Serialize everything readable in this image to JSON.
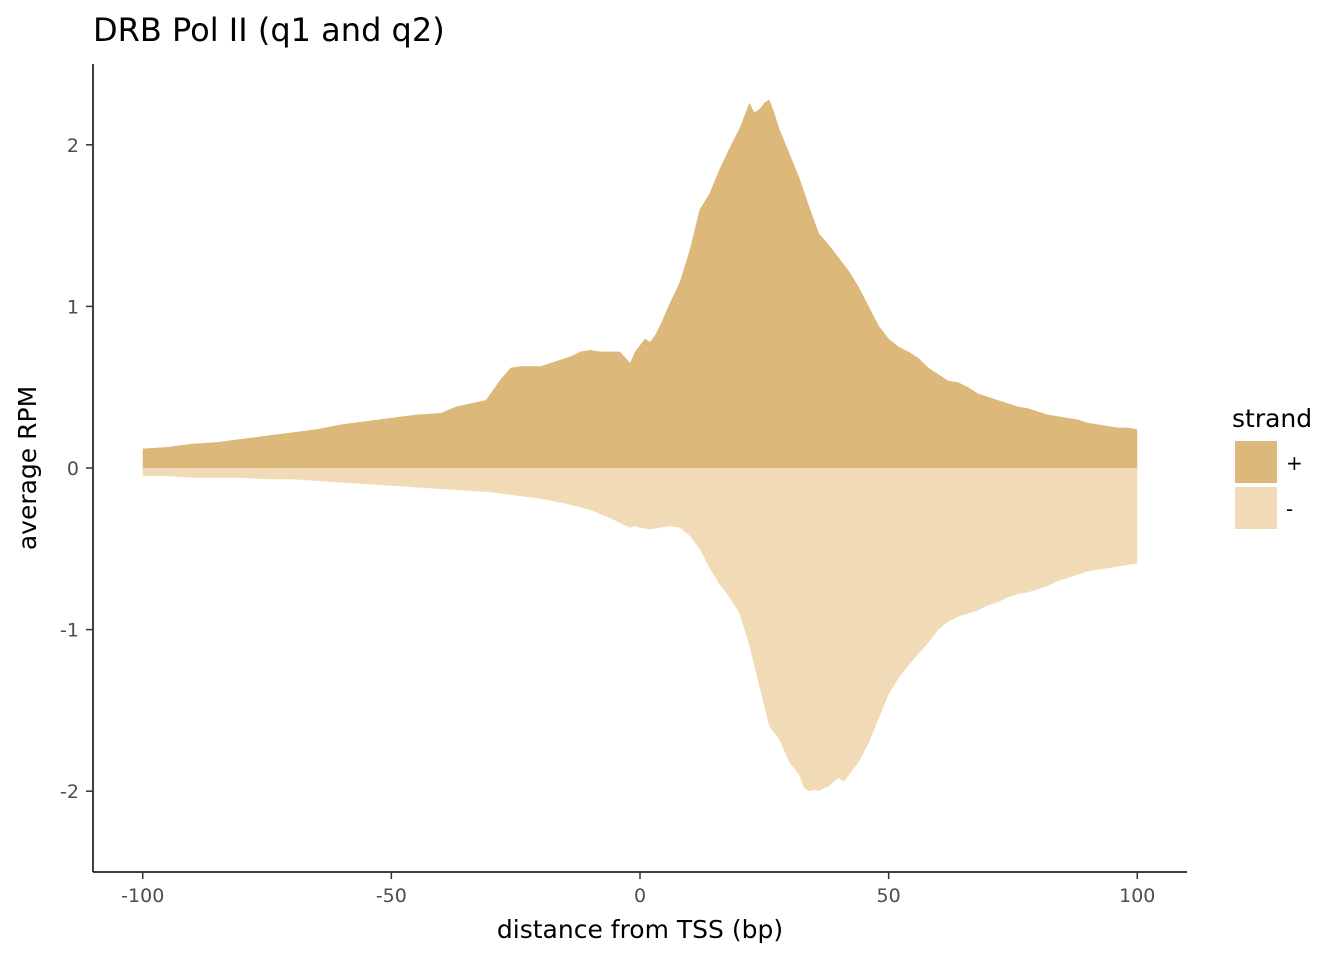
{
  "chart_data": {
    "type": "area",
    "title": "DRB Pol II (q1 and q2)",
    "xlabel": "distance from TSS (bp)",
    "ylabel": "average RPM",
    "xlim": [
      -110,
      110
    ],
    "ylim": [
      -2.5,
      2.5
    ],
    "xticks": [
      -100,
      -50,
      0,
      50,
      100
    ],
    "xtick_labels": [
      "-100",
      "-50",
      "0",
      "50",
      "100"
    ],
    "yticks": [
      -2,
      -1,
      0,
      1,
      2
    ],
    "ytick_labels": [
      "-2",
      "-1",
      "0",
      "1",
      "2"
    ],
    "grid": false,
    "legend": {
      "title": "strand",
      "placement": "right",
      "entries": [
        {
          "label": "+",
          "color": "#DCB97A"
        },
        {
          "label": "-",
          "color": "#F0DBB6"
        }
      ]
    },
    "series": [
      {
        "name": "+",
        "color": "#DCB97A",
        "x": [
          -100,
          -95,
          -90,
          -85,
          -80,
          -75,
          -70,
          -65,
          -60,
          -55,
          -50,
          -45,
          -40,
          -37,
          -34,
          -31,
          -28,
          -26,
          -24,
          -22,
          -20,
          -18,
          -16,
          -14,
          -12,
          -10,
          -8,
          -6,
          -4,
          -2,
          -1,
          0,
          1,
          2,
          3,
          4,
          6,
          8,
          10,
          12,
          14,
          16,
          18,
          20,
          21,
          22,
          23,
          24,
          25,
          26,
          27,
          28,
          30,
          32,
          34,
          36,
          38,
          40,
          42,
          44,
          46,
          48,
          50,
          52,
          54,
          56,
          58,
          60,
          62,
          64,
          66,
          68,
          70,
          72,
          74,
          76,
          78,
          80,
          82,
          84,
          86,
          88,
          90,
          92,
          94,
          96,
          98,
          100
        ],
        "values": [
          0.12,
          0.13,
          0.15,
          0.16,
          0.18,
          0.2,
          0.22,
          0.24,
          0.27,
          0.29,
          0.31,
          0.33,
          0.34,
          0.38,
          0.4,
          0.42,
          0.55,
          0.62,
          0.63,
          0.63,
          0.63,
          0.65,
          0.67,
          0.69,
          0.72,
          0.73,
          0.72,
          0.72,
          0.72,
          0.65,
          0.72,
          0.76,
          0.8,
          0.78,
          0.82,
          0.88,
          1.02,
          1.15,
          1.35,
          1.6,
          1.7,
          1.85,
          1.98,
          2.1,
          2.18,
          2.26,
          2.2,
          2.22,
          2.26,
          2.28,
          2.2,
          2.1,
          1.95,
          1.8,
          1.62,
          1.45,
          1.38,
          1.3,
          1.22,
          1.12,
          1.0,
          0.88,
          0.8,
          0.75,
          0.72,
          0.68,
          0.62,
          0.58,
          0.54,
          0.53,
          0.5,
          0.46,
          0.44,
          0.42,
          0.4,
          0.38,
          0.37,
          0.35,
          0.33,
          0.32,
          0.31,
          0.3,
          0.28,
          0.27,
          0.26,
          0.25,
          0.25,
          0.24
        ]
      },
      {
        "name": "-",
        "color": "#F0DBB6",
        "x": [
          -100,
          -95,
          -90,
          -85,
          -80,
          -75,
          -70,
          -65,
          -60,
          -55,
          -50,
          -45,
          -40,
          -35,
          -30,
          -25,
          -20,
          -15,
          -10,
          -6,
          -4,
          -2,
          -1,
          0,
          2,
          4,
          6,
          8,
          10,
          12,
          14,
          16,
          18,
          20,
          22,
          24,
          26,
          28,
          30,
          32,
          33,
          34,
          35,
          36,
          37,
          38,
          39,
          40,
          41,
          42,
          44,
          46,
          48,
          50,
          52,
          54,
          56,
          58,
          60,
          62,
          64,
          66,
          68,
          70,
          72,
          74,
          76,
          78,
          80,
          82,
          84,
          86,
          88,
          90,
          92,
          94,
          96,
          98,
          100
        ],
        "values": [
          -0.05,
          -0.05,
          -0.06,
          -0.06,
          -0.06,
          -0.07,
          -0.07,
          -0.08,
          -0.09,
          -0.1,
          -0.11,
          -0.12,
          -0.13,
          -0.14,
          -0.15,
          -0.17,
          -0.19,
          -0.22,
          -0.26,
          -0.31,
          -0.34,
          -0.37,
          -0.36,
          -0.37,
          -0.38,
          -0.37,
          -0.36,
          -0.37,
          -0.42,
          -0.5,
          -0.62,
          -0.72,
          -0.8,
          -0.9,
          -1.1,
          -1.35,
          -1.6,
          -1.68,
          -1.82,
          -1.9,
          -1.98,
          -2.0,
          -1.99,
          -2.0,
          -1.98,
          -1.97,
          -1.94,
          -1.92,
          -1.94,
          -1.9,
          -1.82,
          -1.7,
          -1.55,
          -1.4,
          -1.3,
          -1.22,
          -1.15,
          -1.08,
          -1.0,
          -0.95,
          -0.92,
          -0.9,
          -0.88,
          -0.85,
          -0.83,
          -0.8,
          -0.78,
          -0.77,
          -0.75,
          -0.73,
          -0.7,
          -0.68,
          -0.66,
          -0.64,
          -0.63,
          -0.62,
          -0.61,
          -0.6,
          -0.59
        ]
      }
    ]
  }
}
